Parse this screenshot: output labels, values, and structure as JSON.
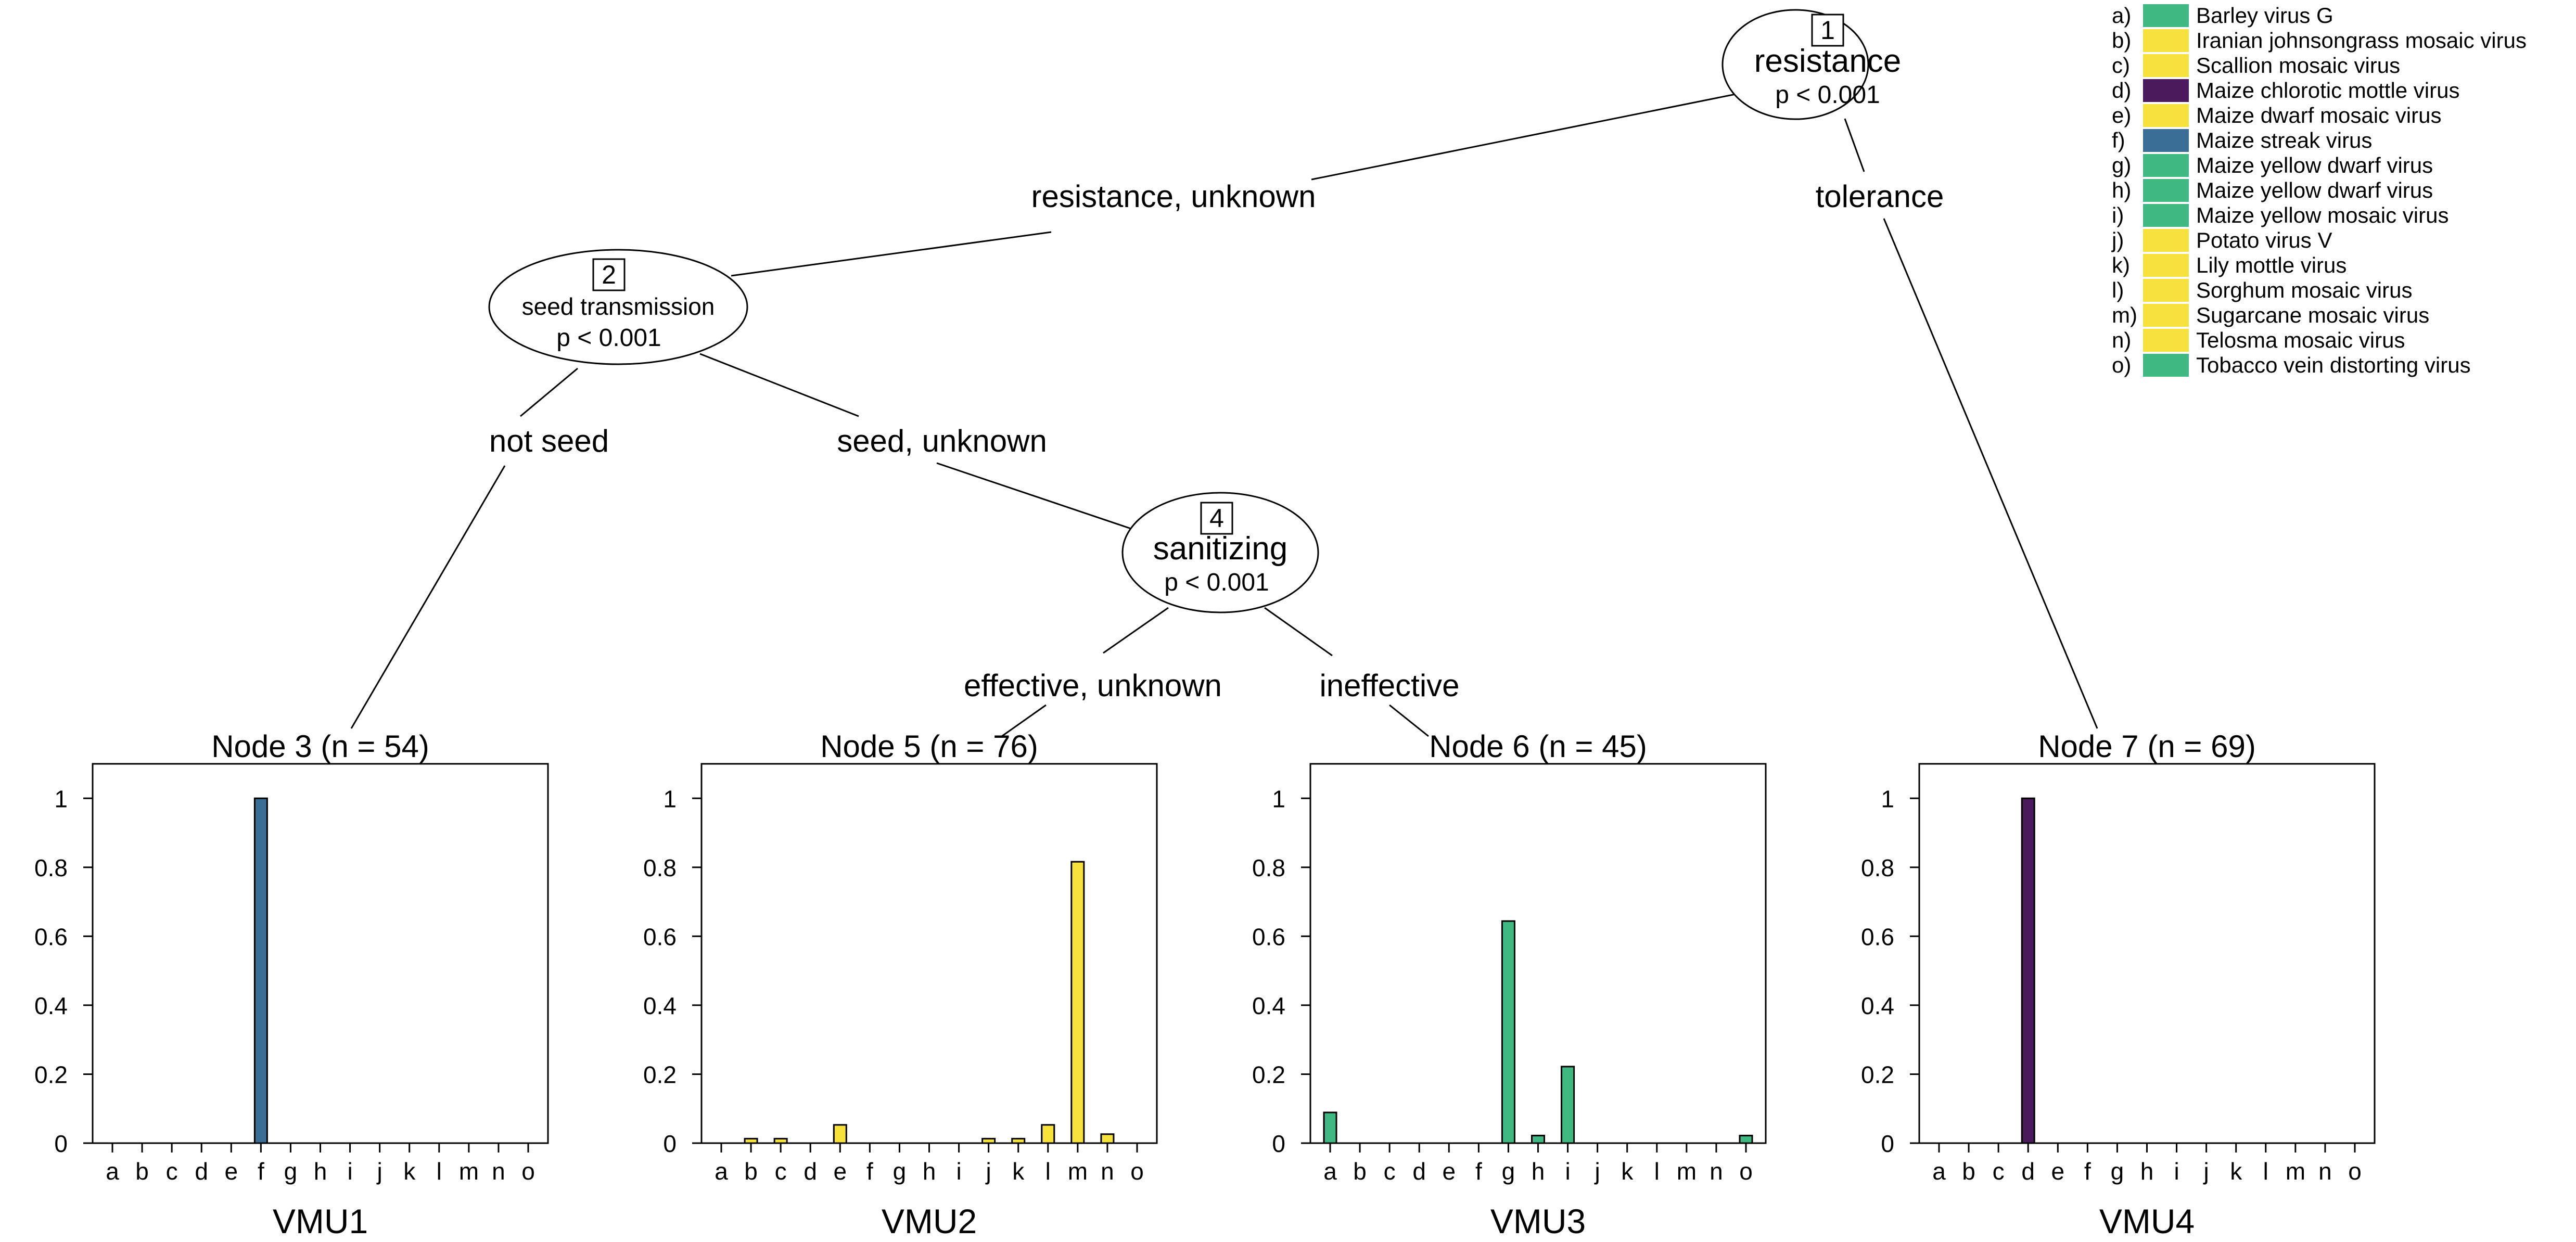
{
  "tree": {
    "nodes": [
      {
        "id": "1",
        "label": "resistance",
        "p": "p < 0.001"
      },
      {
        "id": "2",
        "label": "seed transmission",
        "p": "p < 0.001"
      },
      {
        "id": "4",
        "label": "sanitizing",
        "p": "p < 0.001"
      }
    ],
    "edges": [
      {
        "label": "resistance, unknown"
      },
      {
        "label": "tolerance"
      },
      {
        "label": "not seed"
      },
      {
        "label": "seed, unknown"
      },
      {
        "label": "effective, unknown"
      },
      {
        "label": "ineffective"
      }
    ]
  },
  "legend": {
    "items": [
      {
        "key": "a)",
        "name": "Barley virus G",
        "color": "#3fb882"
      },
      {
        "key": "b)",
        "name": "Iranian johnsongrass mosaic virus",
        "color": "#f7e23d"
      },
      {
        "key": "c)",
        "name": "Scallion mosaic virus",
        "color": "#f7e23d"
      },
      {
        "key": "d)",
        "name": "Maize chlorotic mottle virus",
        "color": "#4a1a5c"
      },
      {
        "key": "e)",
        "name": "Maize dwarf mosaic virus",
        "color": "#f7e23d"
      },
      {
        "key": "f)",
        "name": "Maize streak virus",
        "color": "#3b6e96"
      },
      {
        "key": "g)",
        "name": "Maize yellow dwarf virus",
        "color": "#3fb882"
      },
      {
        "key": "h)",
        "name": "Maize yellow dwarf virus",
        "color": "#3fb882"
      },
      {
        "key": "i)",
        "name": "Maize yellow mosaic virus",
        "color": "#3fb882"
      },
      {
        "key": "j)",
        "name": "Potato virus V",
        "color": "#f7e23d"
      },
      {
        "key": "k)",
        "name": "Lily mottle virus",
        "color": "#f7e23d"
      },
      {
        "key": "l)",
        "name": "Sorghum mosaic virus",
        "color": "#f7e23d"
      },
      {
        "key": "m)",
        "name": "Sugarcane mosaic virus",
        "color": "#f7e23d"
      },
      {
        "key": "n)",
        "name": "Telosma mosaic virus",
        "color": "#f7e23d"
      },
      {
        "key": "o)",
        "name": "Tobacco vein distorting virus",
        "color": "#3fb882"
      }
    ]
  },
  "chart_data": [
    {
      "type": "bar",
      "title": "Node 3 (n = 54)",
      "xlabel": "VMU1",
      "categories": [
        "a",
        "b",
        "c",
        "d",
        "e",
        "f",
        "g",
        "h",
        "i",
        "j",
        "k",
        "l",
        "m",
        "n",
        "o"
      ],
      "values": [
        0,
        0,
        0,
        0,
        0,
        1,
        0,
        0,
        0,
        0,
        0,
        0,
        0,
        0,
        0
      ],
      "ylim": [
        0,
        1.1
      ],
      "yticks": [
        "0",
        "0.2",
        "0.4",
        "0.6",
        "0.8",
        "1"
      ]
    },
    {
      "type": "bar",
      "title": "Node 5 (n = 76)",
      "xlabel": "VMU2",
      "categories": [
        "a",
        "b",
        "c",
        "d",
        "e",
        "f",
        "g",
        "h",
        "i",
        "j",
        "k",
        "l",
        "m",
        "n",
        "o"
      ],
      "values": [
        0,
        0.013,
        0.013,
        0,
        0.053,
        0,
        0,
        0,
        0,
        0.013,
        0.013,
        0.053,
        0.816,
        0.026,
        0
      ],
      "ylim": [
        0,
        1.1
      ],
      "yticks": [
        "0",
        "0.2",
        "0.4",
        "0.6",
        "0.8",
        "1"
      ]
    },
    {
      "type": "bar",
      "title": "Node 6 (n = 45)",
      "xlabel": "VMU3",
      "categories": [
        "a",
        "b",
        "c",
        "d",
        "e",
        "f",
        "g",
        "h",
        "i",
        "j",
        "k",
        "l",
        "m",
        "n",
        "o"
      ],
      "values": [
        0.089,
        0,
        0,
        0,
        0,
        0,
        0.644,
        0.022,
        0.222,
        0,
        0,
        0,
        0,
        0,
        0.022
      ],
      "ylim": [
        0,
        1.1
      ],
      "yticks": [
        "0",
        "0.2",
        "0.4",
        "0.6",
        "0.8",
        "1"
      ]
    },
    {
      "type": "bar",
      "title": "Node 7 (n = 69)",
      "xlabel": "VMU4",
      "categories": [
        "a",
        "b",
        "c",
        "d",
        "e",
        "f",
        "g",
        "h",
        "i",
        "j",
        "k",
        "l",
        "m",
        "n",
        "o"
      ],
      "values": [
        0,
        0,
        0,
        1,
        0,
        0,
        0,
        0,
        0,
        0,
        0,
        0,
        0,
        0,
        0
      ],
      "ylim": [
        0,
        1.1
      ],
      "yticks": [
        "0",
        "0.2",
        "0.4",
        "0.6",
        "0.8",
        "1"
      ]
    }
  ]
}
